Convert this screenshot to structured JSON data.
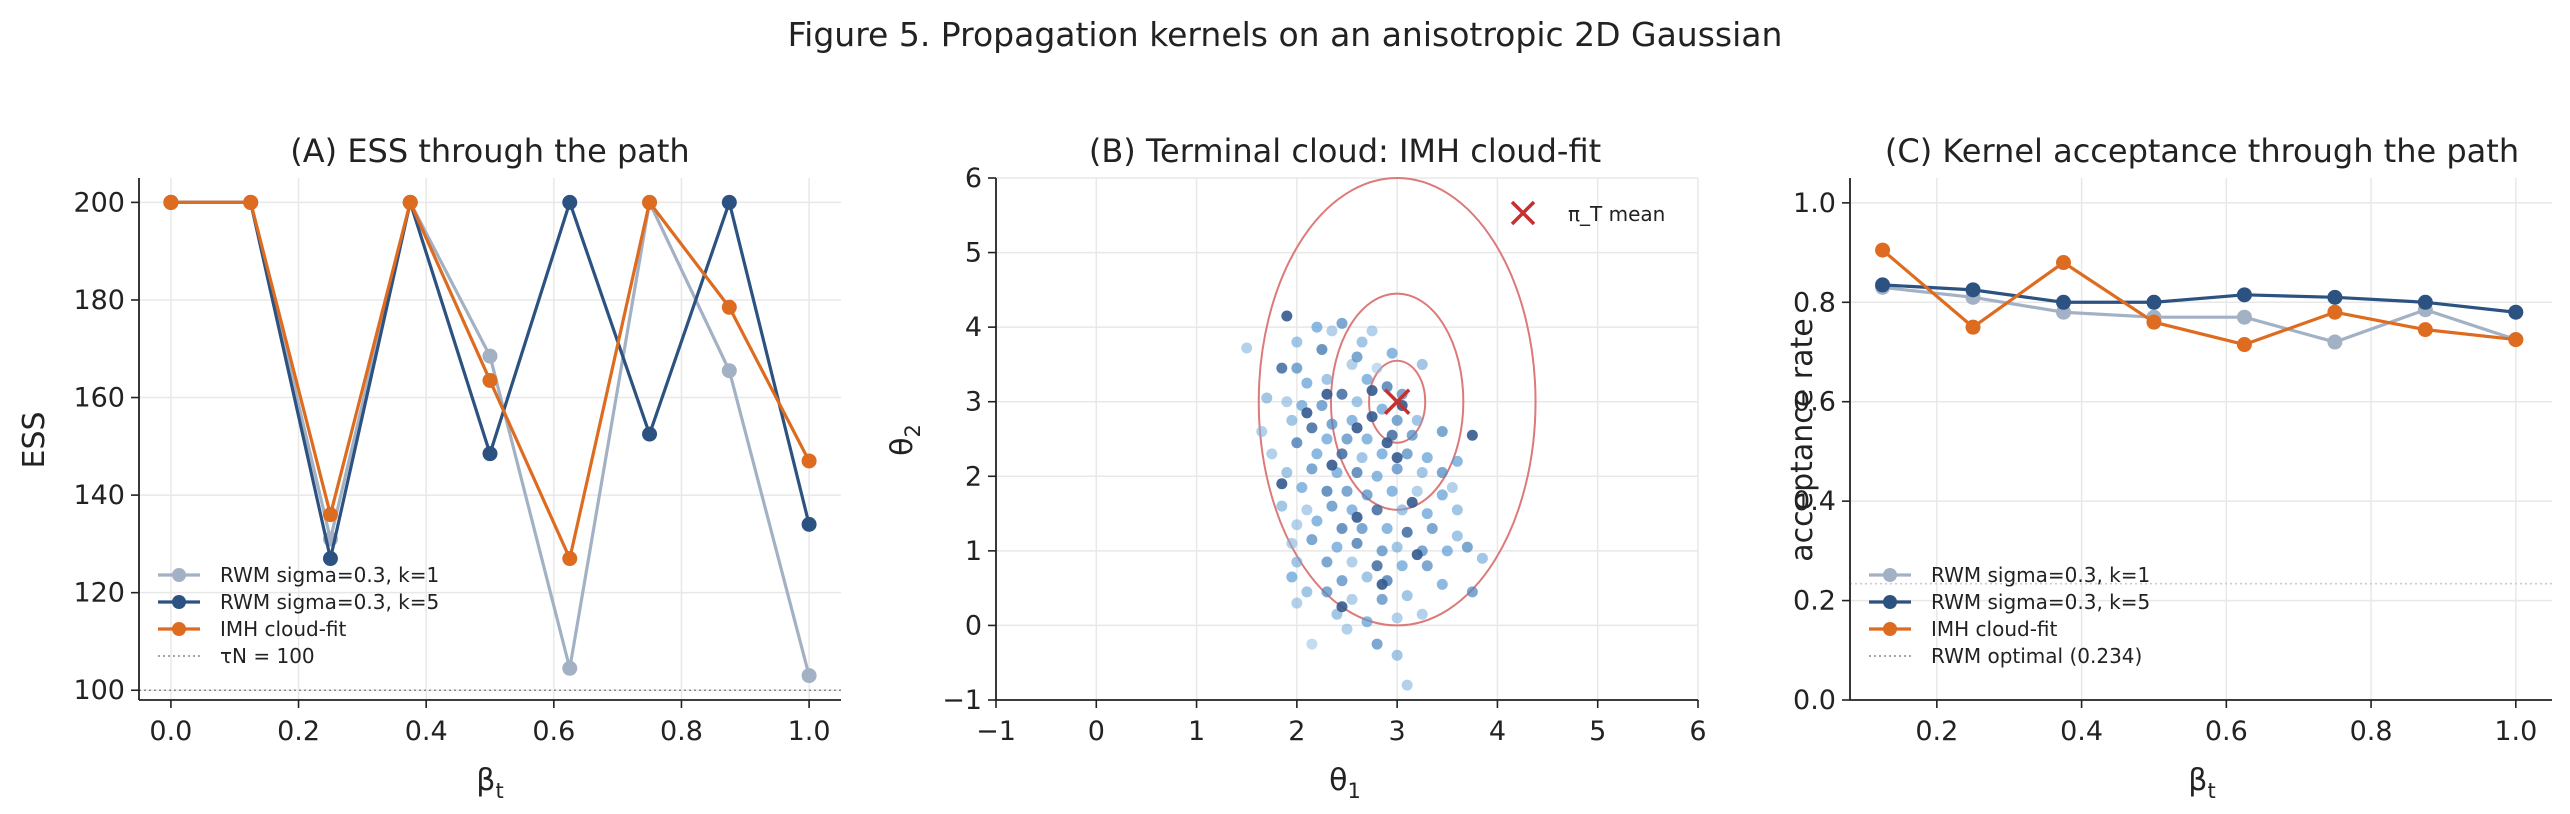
{
  "figure_title": "Figure 5. Propagation kernels on an anisotropic 2D Gaussian",
  "colors": {
    "rwm_k1": "#a3b1c5",
    "rwm_k5": "#2c5282",
    "imh": "#dd6b20",
    "mean_marker": "#c53030",
    "contour": "#dc7a7a",
    "cloud_light": "#bcd7ee",
    "cloud_mid": "#5a9bd4",
    "cloud_dark": "#2b4a7e",
    "grid": "#e8e8e8",
    "reference": "#888888"
  },
  "chart_data": [
    {
      "type": "line",
      "title": "(A) ESS through the path",
      "xlabel": "β_t",
      "ylabel": "ESS",
      "xlim": [
        -0.05,
        1.05
      ],
      "ylim": [
        98,
        205
      ],
      "xticks": [
        0.0,
        0.2,
        0.4,
        0.6,
        0.8,
        1.0
      ],
      "xtick_labels": [
        "0.0",
        "0.2",
        "0.4",
        "0.6",
        "0.8",
        "1.0"
      ],
      "yticks": [
        100,
        120,
        140,
        160,
        180,
        200
      ],
      "ytick_labels": [
        "100",
        "120",
        "140",
        "160",
        "180",
        "200"
      ],
      "grid": true,
      "legend_position": "lower-left",
      "x": [
        0.0,
        0.125,
        0.25,
        0.375,
        0.5,
        0.625,
        0.75,
        0.875,
        1.0
      ],
      "series": [
        {
          "name": "RWM sigma=0.3, k=1",
          "color_key": "rwm_k1",
          "values": [
            200,
            200,
            131,
            200,
            168.5,
            104.5,
            200,
            165.5,
            103
          ]
        },
        {
          "name": "RWM sigma=0.3, k=5",
          "color_key": "rwm_k5",
          "values": [
            200,
            200,
            127,
            200,
            148.5,
            200,
            152.5,
            200,
            134
          ]
        },
        {
          "name": "IMH cloud-fit",
          "color_key": "imh",
          "values": [
            200,
            200,
            136,
            200,
            163.5,
            127,
            200,
            178.5,
            147
          ]
        }
      ],
      "reference_line": {
        "name": "τN = 100",
        "y": 100
      }
    },
    {
      "type": "scatter",
      "title": "(B) Terminal cloud: IMH cloud-fit",
      "xlabel": "θ_1",
      "ylabel": "θ_2",
      "xlim": [
        -1,
        6
      ],
      "ylim": [
        -1,
        6
      ],
      "xticks": [
        -1,
        0,
        1,
        2,
        3,
        4,
        5,
        6
      ],
      "xtick_labels": [
        "−1",
        "0",
        "1",
        "2",
        "3",
        "4",
        "5",
        "6"
      ],
      "yticks": [
        -1,
        0,
        1,
        2,
        3,
        4,
        5,
        6
      ],
      "ytick_labels": [
        "−1",
        "0",
        "1",
        "2",
        "3",
        "4",
        "5",
        "6"
      ],
      "grid": true,
      "legend_position": "top-right",
      "target_mean": {
        "name": "π_T mean",
        "x": 3.0,
        "y": 3.0
      },
      "contour_ellipses": [
        {
          "cx": 3.0,
          "cy": 3.0,
          "rx": 0.28,
          "ry": 0.55
        },
        {
          "cx": 3.0,
          "cy": 3.0,
          "rx": 0.66,
          "ry": 1.45
        },
        {
          "cx": 3.0,
          "cy": 3.0,
          "rx": 1.38,
          "ry": 3.0
        }
      ],
      "points": [
        [
          1.9,
          4.15,
          0.9
        ],
        [
          2.45,
          4.05,
          0.6
        ],
        [
          2.0,
          3.8,
          0.4
        ],
        [
          2.25,
          3.7,
          0.7
        ],
        [
          1.5,
          3.72,
          0.3
        ],
        [
          2.8,
          3.45,
          0.2
        ],
        [
          2.0,
          3.45,
          0.6
        ],
        [
          1.85,
          3.45,
          0.8
        ],
        [
          2.55,
          3.5,
          0.3
        ],
        [
          2.1,
          3.25,
          0.5
        ],
        [
          2.3,
          3.3,
          0.4
        ],
        [
          2.7,
          3.3,
          0.5
        ],
        [
          2.9,
          3.2,
          0.7
        ],
        [
          2.45,
          3.1,
          0.8
        ],
        [
          1.9,
          3.0,
          0.3
        ],
        [
          2.05,
          2.95,
          0.5
        ],
        [
          2.25,
          2.95,
          0.6
        ],
        [
          2.6,
          3.0,
          0.4
        ],
        [
          2.85,
          2.9,
          0.5
        ],
        [
          3.05,
          3.1,
          0.6
        ],
        [
          1.95,
          2.75,
          0.4
        ],
        [
          2.15,
          2.65,
          0.8
        ],
        [
          2.35,
          2.7,
          0.6
        ],
        [
          2.55,
          2.75,
          0.5
        ],
        [
          2.75,
          2.8,
          0.9
        ],
        [
          3.0,
          2.75,
          0.6
        ],
        [
          3.2,
          2.75,
          0.4
        ],
        [
          2.3,
          2.5,
          0.5
        ],
        [
          2.5,
          2.5,
          0.6
        ],
        [
          2.7,
          2.5,
          0.5
        ],
        [
          2.95,
          2.55,
          0.8
        ],
        [
          3.15,
          2.55,
          0.6
        ],
        [
          2.0,
          2.45,
          0.7
        ],
        [
          1.75,
          2.3,
          0.3
        ],
        [
          2.2,
          2.3,
          0.5
        ],
        [
          2.45,
          2.3,
          0.8
        ],
        [
          2.65,
          2.25,
          0.4
        ],
        [
          2.85,
          2.3,
          0.5
        ],
        [
          3.1,
          2.3,
          0.6
        ],
        [
          3.3,
          2.25,
          0.5
        ],
        [
          3.75,
          2.55,
          0.9
        ],
        [
          1.9,
          2.05,
          0.4
        ],
        [
          2.15,
          2.1,
          0.6
        ],
        [
          2.4,
          2.05,
          0.5
        ],
        [
          2.6,
          2.05,
          0.7
        ],
        [
          2.8,
          2.0,
          0.5
        ],
        [
          3.0,
          2.1,
          0.6
        ],
        [
          3.25,
          2.05,
          0.4
        ],
        [
          3.45,
          2.05,
          0.6
        ],
        [
          1.85,
          1.9,
          0.9
        ],
        [
          2.05,
          1.85,
          0.5
        ],
        [
          2.3,
          1.8,
          0.7
        ],
        [
          2.5,
          1.8,
          0.6
        ],
        [
          2.7,
          1.75,
          0.6
        ],
        [
          2.95,
          1.8,
          0.5
        ],
        [
          3.2,
          1.8,
          0.3
        ],
        [
          3.45,
          1.75,
          0.5
        ],
        [
          1.85,
          1.6,
          0.4
        ],
        [
          2.1,
          1.55,
          0.3
        ],
        [
          2.35,
          1.6,
          0.6
        ],
        [
          2.55,
          1.55,
          0.5
        ],
        [
          2.8,
          1.55,
          0.8
        ],
        [
          3.05,
          1.55,
          0.4
        ],
        [
          3.3,
          1.5,
          0.5
        ],
        [
          3.6,
          1.55,
          0.4
        ],
        [
          2.0,
          1.35,
          0.3
        ],
        [
          2.2,
          1.4,
          0.5
        ],
        [
          2.45,
          1.3,
          0.7
        ],
        [
          2.65,
          1.3,
          0.6
        ],
        [
          2.9,
          1.3,
          0.5
        ],
        [
          3.1,
          1.25,
          0.8
        ],
        [
          3.35,
          1.3,
          0.6
        ],
        [
          3.6,
          1.2,
          0.4
        ],
        [
          1.95,
          1.1,
          0.3
        ],
        [
          2.15,
          1.15,
          0.6
        ],
        [
          2.4,
          1.05,
          0.5
        ],
        [
          2.6,
          1.1,
          0.7
        ],
        [
          2.85,
          1.0,
          0.6
        ],
        [
          3.0,
          1.05,
          0.4
        ],
        [
          3.25,
          1.0,
          0.6
        ],
        [
          3.5,
          1.0,
          0.5
        ],
        [
          3.7,
          1.05,
          0.6
        ],
        [
          3.85,
          0.9,
          0.4
        ],
        [
          2.0,
          0.85,
          0.4
        ],
        [
          2.3,
          0.85,
          0.6
        ],
        [
          2.55,
          0.85,
          0.3
        ],
        [
          2.8,
          0.8,
          0.8
        ],
        [
          3.05,
          0.8,
          0.5
        ],
        [
          3.3,
          0.8,
          0.6
        ],
        [
          1.95,
          0.65,
          0.5
        ],
        [
          2.45,
          0.6,
          0.6
        ],
        [
          2.7,
          0.65,
          0.4
        ],
        [
          2.9,
          0.6,
          0.7
        ],
        [
          3.45,
          0.55,
          0.5
        ],
        [
          3.75,
          0.45,
          0.6
        ],
        [
          2.1,
          0.45,
          0.4
        ],
        [
          2.3,
          0.45,
          0.6
        ],
        [
          2.55,
          0.35,
          0.3
        ],
        [
          2.85,
          0.35,
          0.6
        ],
        [
          3.1,
          0.4,
          0.4
        ],
        [
          2.0,
          0.3,
          0.3
        ],
        [
          2.4,
          0.15,
          0.4
        ],
        [
          2.7,
          0.05,
          0.5
        ],
        [
          3.0,
          0.1,
          0.3
        ],
        [
          3.25,
          0.15,
          0.3
        ],
        [
          2.5,
          -0.05,
          0.3
        ],
        [
          2.8,
          -0.25,
          0.6
        ],
        [
          3.0,
          -0.4,
          0.4
        ],
        [
          2.15,
          -0.25,
          0.2
        ],
        [
          3.1,
          -0.8,
          0.3
        ],
        [
          2.35,
          3.95,
          0.3
        ],
        [
          2.65,
          3.8,
          0.4
        ],
        [
          2.95,
          3.65,
          0.5
        ],
        [
          3.25,
          3.5,
          0.4
        ],
        [
          2.6,
          3.6,
          0.6
        ],
        [
          2.2,
          4.0,
          0.5
        ],
        [
          2.75,
          3.95,
          0.3
        ],
        [
          1.7,
          3.05,
          0.4
        ],
        [
          1.65,
          2.6,
          0.3
        ],
        [
          3.45,
          2.6,
          0.6
        ],
        [
          3.6,
          2.2,
          0.5
        ],
        [
          3.55,
          1.85,
          0.3
        ],
        [
          2.1,
          2.85,
          0.9
        ],
        [
          2.3,
          3.1,
          0.9
        ],
        [
          2.6,
          2.65,
          0.9
        ],
        [
          2.9,
          2.45,
          0.9
        ],
        [
          3.0,
          2.25,
          0.9
        ],
        [
          2.35,
          2.15,
          0.9
        ],
        [
          3.15,
          1.65,
          0.9
        ],
        [
          2.6,
          1.45,
          0.9
        ],
        [
          3.2,
          0.95,
          0.9
        ],
        [
          2.85,
          0.55,
          0.9
        ],
        [
          2.45,
          0.25,
          0.9
        ],
        [
          3.05,
          2.95,
          0.9
        ],
        [
          2.75,
          3.15,
          0.9
        ]
      ]
    },
    {
      "type": "line",
      "title": "(C) Kernel acceptance through the path",
      "xlabel": "β_t",
      "ylabel": "acceptance rate",
      "xlim": [
        0.08,
        1.05
      ],
      "ylim": [
        0.0,
        1.05
      ],
      "xticks": [
        0.2,
        0.4,
        0.6,
        0.8,
        1.0
      ],
      "xtick_labels": [
        "0.2",
        "0.4",
        "0.6",
        "0.8",
        "1.0"
      ],
      "yticks": [
        0.0,
        0.2,
        0.4,
        0.6,
        0.8,
        1.0
      ],
      "ytick_labels": [
        "0.0",
        "0.2",
        "0.4",
        "0.6",
        "0.8",
        "1.0"
      ],
      "grid": true,
      "legend_position": "lower-left",
      "x": [
        0.125,
        0.25,
        0.375,
        0.5,
        0.625,
        0.75,
        0.875,
        1.0
      ],
      "series": [
        {
          "name": "RWM sigma=0.3, k=1",
          "color_key": "rwm_k1",
          "values": [
            0.83,
            0.81,
            0.78,
            0.77,
            0.77,
            0.72,
            0.785,
            0.725
          ]
        },
        {
          "name": "RWM sigma=0.3, k=5",
          "color_key": "rwm_k5",
          "values": [
            0.835,
            0.825,
            0.8,
            0.8,
            0.815,
            0.81,
            0.8,
            0.78
          ]
        },
        {
          "name": "IMH cloud-fit",
          "color_key": "imh",
          "values": [
            0.905,
            0.75,
            0.88,
            0.76,
            0.715,
            0.78,
            0.745,
            0.725
          ]
        }
      ],
      "reference_line": {
        "name": "RWM optimal (0.234)",
        "y": 0.234
      }
    }
  ]
}
